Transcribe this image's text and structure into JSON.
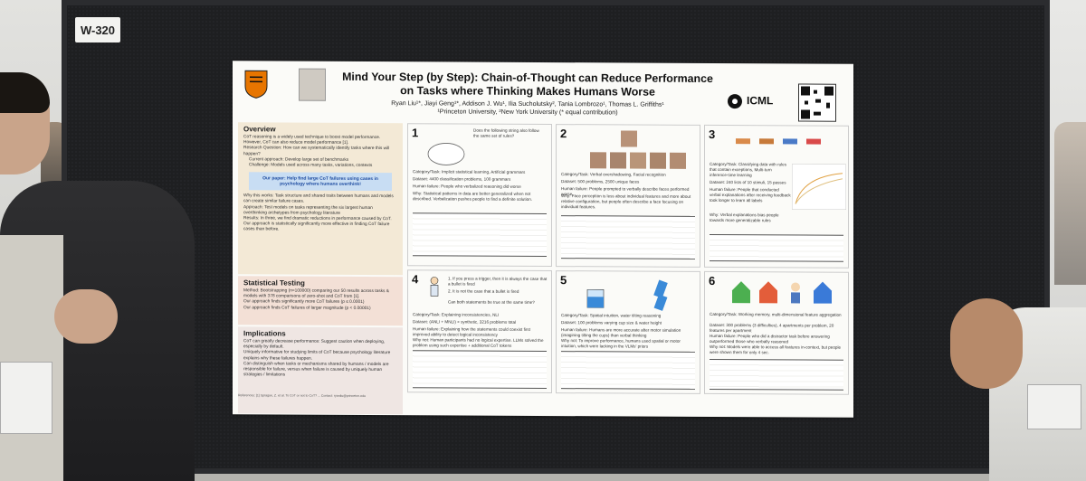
{
  "booth": {
    "label": "W-320"
  },
  "poster": {
    "title": "Mind Your Step (by Step):  Chain-of-Thought can Reduce Performance on Tasks where Thinking Makes Humans Worse",
    "authors": "Ryan Liu¹*, Jiayi Geng¹*, Addison J. Wu¹, Ilia Sucholutsky², Tania Lombrozo¹, Thomas L. Griffiths¹",
    "affiliations": "¹Princeton University, ²New York University (* equal contribution)",
    "conference": "ICML",
    "overview": {
      "title": "Overview",
      "bullets": [
        "CoT reasoning is a widely used technique to boost model performance. However, CoT can also reduce model performance [1].",
        "Research Question: How can we systematically identify tasks where this will happen?",
        "Current approach: Develop large set of benchmarks",
        "Challenge: Models used across many tasks, variations, contexts"
      ],
      "highlight": "Our paper: Help find large CoT failures using cases in psychology where humans overthink!",
      "bullets2": [
        "Why this works: Task structure and shared traits between humans and models can create similar failure cases.",
        "Approach: Test models on tasks representing the six largest human overthinking archetypes from psychology literature",
        "Results: In three, we find dramatic reductions in performance caused by CoT. Our approach is statistically significantly more effective in finding CoT failure cases than before."
      ]
    },
    "stat": {
      "title": "Statistical Testing",
      "bullets": [
        "Method: Bootstrapping (n=100000) comparing our 50 results across tasks & models with 378 comparisons of zero-shot and CoT from [1].",
        "Our approach finds significantly more CoT failures (p ≤ 0.0001)",
        "Our approach finds CoT failures of larger magnitude (p < 0.00001)"
      ]
    },
    "impl": {
      "title": "Implications",
      "bullets": [
        "CoT can greatly decrease performance: Suggest caution when deploying, especially by default.",
        "Uniquely informative for studying limits of CoT because psychology literature explains why these failures happen.",
        "Can distinguish when tasks or mechanisms shared by humans / models are responsible for failure, versus when failure is caused by uniquely human strategies / limitations"
      ]
    },
    "panels": [
      {
        "num": "1",
        "lines": [
          "Category/Task: Implicit statistical learning, Artificial grammars",
          "Dataset: 4400 classification problems, 100 grammars",
          "Human failure: People who verbalized reasoning did worse",
          "Why: Statistical patterns in data are better generalized when not described. Verbalization pushes people to find a definite solution."
        ]
      },
      {
        "num": "2",
        "lines": [
          "Category/Task: Verbal overshadowing, Facial recognition",
          "Dataset: 500 problems, 2500 unique faces",
          "Human failure: People prompted to verbally describe faces performed worse",
          "Why: Face perception is less about individual features and more about relative configuration, but people often describe a face focusing on individual features."
        ]
      },
      {
        "num": "3",
        "lines": [
          "Category/Task: Classifying data with rules that contain exceptions, Multi-turn inference-time learning",
          "Dataset: 240 lists of 10 stimuli, 15 passes",
          "Human failure: People that conducted verbal explanations after receiving feedback took longer to learn all labels",
          "Why: Verbal explanations bias people towards more generalizable rules"
        ]
      },
      {
        "num": "4",
        "lines": [
          "Category/Task: Explaining inconsistencies, NLI",
          "Dataset: (ANLI + MNLI) × synthetic, 3216 problems total",
          "Human failure: Explaining how the statements could coexist first improved ability to detect logical inconsistency",
          "Why not: Human participants had no logical expertise. LLMs solved the problem using such expertise + additional CoT tokens"
        ]
      },
      {
        "num": "5",
        "lines": [
          "Category/Task: Spatial intuition, water tilting reasoning",
          "Dataset: 100 problems varying cup size & water height",
          "Human failure: Humans are more accurate after motor simulation (imagining tilting the cups) than verbal thinking",
          "Why not: To improve performance, humans used spatial or motor intuition, which were lacking in the VLMs' priors"
        ]
      },
      {
        "num": "6",
        "lines": [
          "Category/Task: Working memory, multi-dimensional feature aggregation",
          "Dataset: 300 problems (3 difficulties), 4 apartments per problem, 20 features per apartment",
          "Human failure: People who did a distractor task before answering outperformed those who verbally reasoned",
          "Why not: Models were able to access all features in-context, but people were shown them for only 4 sec."
        ]
      }
    ],
    "panel1_prompt": "Does the following string also follow the same set of rules?",
    "panel4_prompt": [
      "1. If you press a trigger, then it is always the case that a bullet is fired",
      "2. It is not the case that a bullet is fired",
      "Can both statements be true at the same time?"
    ],
    "footer": "References: [1] Sprague, Z. et al. To CoT or not to CoT? ... Contact: ryanliu@princeton.edu"
  },
  "colors": {
    "board": "#1e1f21",
    "overview_bg": "#f3e9d6",
    "highlight_bg": "#c8ddf3",
    "princeton_orange": "#e77500"
  }
}
